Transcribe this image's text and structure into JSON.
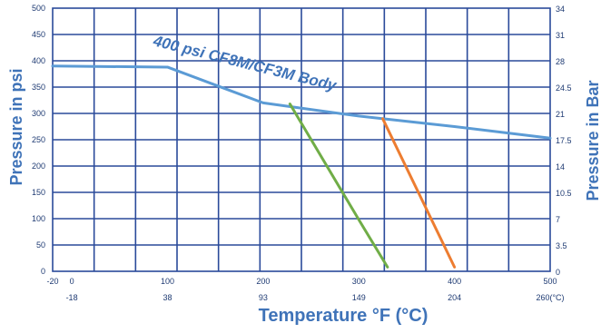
{
  "chart_data": {
    "type": "line",
    "title": "",
    "annotation": "400 psi CF8M/CF3M Body",
    "xlabel": "Temperature °F (°C)",
    "ylabel_left": "Pressure in psi",
    "ylabel_right": "Pressure in Bar",
    "xlim": [
      -20,
      500
    ],
    "ylim": [
      0,
      500
    ],
    "grid": true,
    "x_ticks_f": [
      "-20",
      "0",
      "100",
      "200",
      "300",
      "400",
      "500"
    ],
    "x_ticks_f_values": [
      -20,
      0,
      100,
      200,
      300,
      400,
      500
    ],
    "x_ticks_c": [
      "-18",
      "38",
      "93",
      "149",
      "204",
      "260(°C)"
    ],
    "x_ticks_c_values": [
      0,
      100,
      200,
      300,
      400,
      500
    ],
    "y_ticks_psi": [
      "0",
      "50",
      "100",
      "150",
      "200",
      "250",
      "300",
      "350",
      "400",
      "450",
      "500"
    ],
    "y_ticks_bar": [
      "0",
      "3.5",
      "7",
      "10.5",
      "14",
      "17.5",
      "21",
      "24.5",
      "28",
      "31",
      "34"
    ],
    "series": [
      {
        "color": "#5b9bd5",
        "x": [
          -20,
          100,
          200,
          300,
          400,
          500
        ],
        "y": [
          390,
          388,
          320,
          295,
          275,
          253
        ]
      },
      {
        "color": "#70ad47",
        "x": [
          228,
          300,
          330
        ],
        "y": [
          318,
          98,
          8
        ]
      },
      {
        "color": "#ed7d31",
        "x": [
          325,
          400
        ],
        "y": [
          290,
          8
        ]
      }
    ]
  }
}
